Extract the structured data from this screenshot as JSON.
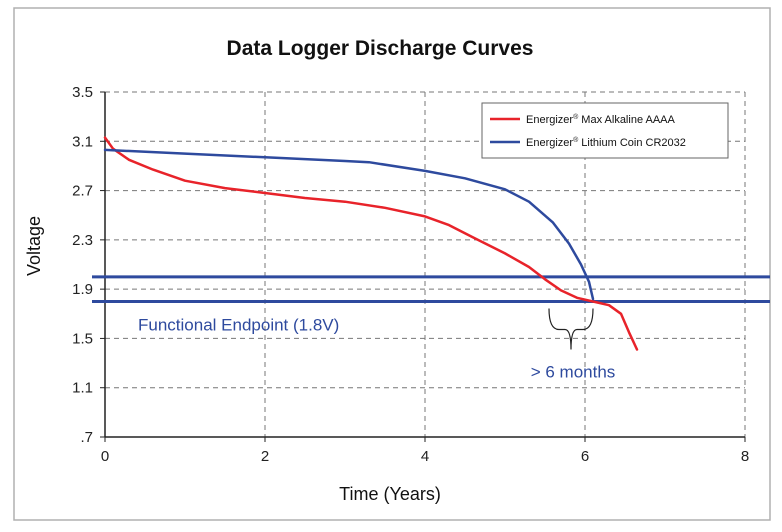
{
  "chart_data": {
    "type": "line",
    "title": "Data Logger Discharge Curves",
    "xlabel": "Time (Years)",
    "ylabel": "Voltage",
    "xlim": [
      0,
      8
    ],
    "ylim": [
      0.7,
      3.5
    ],
    "x_ticks": [
      0,
      2,
      4,
      6,
      8
    ],
    "x_tick_labels": [
      "0",
      "2",
      "4",
      "6",
      "8"
    ],
    "y_ticks": [
      0.7,
      1.1,
      1.5,
      1.9,
      2.3,
      2.7,
      3.1,
      3.5
    ],
    "y_tick_labels": [
      ".7",
      "1.1",
      "1.5",
      "1.9",
      "2.3",
      "2.7",
      "3.1",
      "3.5"
    ],
    "grid": true,
    "legend_position": "top-right",
    "series": [
      {
        "name": "Energizer® Max Alkaline AAAA",
        "legend_brand": "Energizer",
        "legend_mark": "®",
        "legend_rest": " Max Alkaline AAAA",
        "color": "#e8232a",
        "points": [
          [
            0.0,
            3.13
          ],
          [
            0.1,
            3.04
          ],
          [
            0.3,
            2.95
          ],
          [
            0.6,
            2.87
          ],
          [
            1.0,
            2.78
          ],
          [
            1.5,
            2.72
          ],
          [
            2.0,
            2.68
          ],
          [
            2.5,
            2.64
          ],
          [
            3.0,
            2.61
          ],
          [
            3.5,
            2.56
          ],
          [
            4.0,
            2.49
          ],
          [
            4.3,
            2.42
          ],
          [
            4.6,
            2.32
          ],
          [
            5.0,
            2.19
          ],
          [
            5.3,
            2.08
          ],
          [
            5.5,
            1.98
          ],
          [
            5.7,
            1.89
          ],
          [
            5.9,
            1.83
          ],
          [
            6.1,
            1.8
          ],
          [
            6.3,
            1.77
          ],
          [
            6.45,
            1.7
          ],
          [
            6.55,
            1.55
          ],
          [
            6.65,
            1.41
          ]
        ]
      },
      {
        "name": "Energizer® Lithium Coin CR2032",
        "legend_brand": "Energizer",
        "legend_mark": "®",
        "legend_rest": " Lithium Coin CR2032",
        "color": "#2e4a9e",
        "points": [
          [
            0.0,
            3.03
          ],
          [
            1.0,
            3.0
          ],
          [
            2.0,
            2.97
          ],
          [
            3.0,
            2.94
          ],
          [
            3.3,
            2.93
          ],
          [
            4.0,
            2.86
          ],
          [
            4.5,
            2.8
          ],
          [
            5.0,
            2.71
          ],
          [
            5.3,
            2.61
          ],
          [
            5.6,
            2.44
          ],
          [
            5.8,
            2.27
          ],
          [
            5.95,
            2.1
          ],
          [
            6.05,
            1.96
          ],
          [
            6.1,
            1.82
          ]
        ]
      }
    ],
    "reference_lines": [
      {
        "orientation": "horizontal",
        "y": 1.8,
        "color": "#2e4a9e",
        "label": "Functional Endpoint (1.8V)"
      },
      {
        "orientation": "horizontal",
        "y": 2.0,
        "color": "#2e4a9e"
      }
    ],
    "annotations": [
      {
        "text": "> 6 months",
        "x_from": 5.55,
        "x_to": 6.1,
        "y": 1.8
      }
    ]
  }
}
